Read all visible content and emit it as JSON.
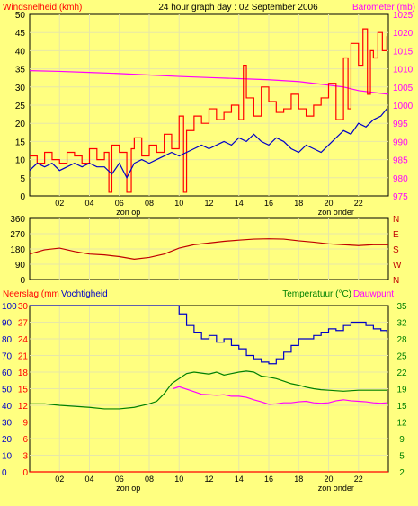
{
  "page": {
    "header_title": "24 hour graph day : 02 September 2006",
    "colors": {
      "background": "#ffff80",
      "plot": "#ffff80",
      "grid": "#e7e7a8",
      "wind_max": "#ff0000",
      "wind_avg": "#0000c8",
      "barometer": "#ff00ff",
      "direction": "#c00000",
      "rain": "#ff0000",
      "humidity": "#0000c8",
      "temperature": "#008000",
      "dewpoint": "#ff00ff"
    }
  },
  "chart_data": [
    {
      "type": "line",
      "left_title": "Windsnelheid (kmh)",
      "right_title": "Barometer (mb)",
      "x_ticks": [
        "02",
        "04",
        "06",
        "08",
        "10",
        "12",
        "14",
        "16",
        "18",
        "20",
        "22"
      ],
      "x_sub_labels": [
        {
          "text": "zon op",
          "at": 6.6
        },
        {
          "text": "zon onder",
          "at": 20.5
        }
      ],
      "xlim": [
        0,
        24
      ],
      "left_ylim": [
        0,
        50
      ],
      "left_ticks": [
        "0",
        "5",
        "10",
        "15",
        "20",
        "25",
        "30",
        "35",
        "40",
        "45",
        "50"
      ],
      "right_ylim": [
        975,
        1025
      ],
      "right_ticks": [
        "975",
        "980",
        "985",
        "990",
        "995",
        "1000",
        "1005",
        "1010",
        "1015",
        "1020",
        "1025"
      ],
      "series": [
        {
          "key": "wind_max",
          "axis": "left",
          "x": [
            0.0,
            0.5,
            1.0,
            1.5,
            2.0,
            2.5,
            3.0,
            3.5,
            4.0,
            4.5,
            5.0,
            5.3,
            5.5,
            6.0,
            6.5,
            6.8,
            7.0,
            7.5,
            8.0,
            8.5,
            9.0,
            9.5,
            10.0,
            10.3,
            10.5,
            11.0,
            11.5,
            12.0,
            12.5,
            13.0,
            13.5,
            14.0,
            14.3,
            14.5,
            15.0,
            15.5,
            16.0,
            16.5,
            17.0,
            17.5,
            18.0,
            18.5,
            19.0,
            19.5,
            20.0,
            20.5,
            21.0,
            21.3,
            21.5,
            22.0,
            22.3,
            22.6,
            22.8,
            23.0,
            23.3,
            23.6,
            23.9
          ],
          "y": [
            11,
            9,
            12,
            10,
            9,
            12,
            11,
            9,
            13,
            10,
            12,
            1,
            14,
            12,
            1,
            13,
            16,
            11,
            14,
            12,
            17,
            13,
            22,
            1,
            18,
            22,
            20,
            24,
            21,
            23,
            25,
            21,
            36,
            27,
            22,
            30,
            26,
            23,
            24,
            28,
            24,
            22,
            25,
            27,
            31,
            21,
            38,
            24,
            42,
            36,
            46,
            28,
            40,
            38,
            45,
            40,
            44
          ]
        },
        {
          "key": "wind_avg",
          "axis": "left",
          "x": [
            0.0,
            0.5,
            1.0,
            1.5,
            2.0,
            2.5,
            3.0,
            3.5,
            4.0,
            4.5,
            5.0,
            5.5,
            6.0,
            6.5,
            7.0,
            7.5,
            8.0,
            8.5,
            9.0,
            9.5,
            10.0,
            10.5,
            11.0,
            11.5,
            12.0,
            12.5,
            13.0,
            13.5,
            14.0,
            14.5,
            15.0,
            15.5,
            16.0,
            16.5,
            17.0,
            17.5,
            18.0,
            18.5,
            19.0,
            19.5,
            20.0,
            20.5,
            21.0,
            21.5,
            22.0,
            22.5,
            23.0,
            23.5,
            23.9
          ],
          "y": [
            7,
            9,
            8,
            9,
            7,
            8,
            9,
            8,
            9,
            8,
            8,
            6,
            9,
            5,
            9,
            10,
            9,
            10,
            11,
            12,
            11,
            12,
            13,
            14,
            13,
            14,
            15,
            14,
            16,
            15,
            17,
            15,
            14,
            16,
            15,
            13,
            12,
            14,
            13,
            12,
            14,
            16,
            18,
            17,
            20,
            19,
            21,
            22,
            24
          ]
        },
        {
          "key": "barometer",
          "axis": "right",
          "x": [
            0,
            2,
            4,
            6,
            8,
            10,
            12,
            14,
            16,
            18,
            20,
            21,
            22,
            23,
            24
          ],
          "y": [
            1009.5,
            1009.3,
            1009.0,
            1008.7,
            1008.3,
            1007.9,
            1007.6,
            1007.3,
            1007.0,
            1006.5,
            1005.5,
            1005.0,
            1004.0,
            1003.5,
            1003.0
          ]
        }
      ]
    },
    {
      "type": "line",
      "left_ticks": [
        "0",
        "90",
        "180",
        "270",
        "360"
      ],
      "left_ylim": [
        0,
        360
      ],
      "right_ticks": [
        "N",
        "W",
        "S",
        "E",
        "N"
      ],
      "xlim": [
        0,
        24
      ],
      "series": [
        {
          "key": "direction",
          "axis": "left",
          "x": [
            0,
            1,
            2,
            3,
            4,
            5,
            6,
            7,
            8,
            9,
            10,
            11,
            12,
            13,
            14,
            15,
            16,
            17,
            18,
            19,
            20,
            21,
            22,
            23,
            24
          ],
          "y": [
            150,
            175,
            185,
            165,
            150,
            145,
            135,
            120,
            130,
            150,
            185,
            205,
            215,
            225,
            232,
            238,
            240,
            238,
            228,
            220,
            210,
            205,
            200,
            205,
            205
          ]
        }
      ]
    },
    {
      "type": "line",
      "left_title_a": "Neerslag (mm",
      "left_title_b": "Vochtigheid",
      "right_title_a": "Temperatuur (°C)",
      "right_title_b": "Dauwpunt",
      "x_ticks": [
        "02",
        "04",
        "06",
        "08",
        "10",
        "12",
        "14",
        "16",
        "18",
        "20",
        "22"
      ],
      "x_sub_labels": [
        {
          "text": "zon op",
          "at": 6.6
        },
        {
          "text": "zon onder",
          "at": 20.5
        }
      ],
      "xlim": [
        0,
        24
      ],
      "rain_ticks": [
        "0",
        "3",
        "6",
        "9",
        "12",
        "15",
        "18",
        "21",
        "24",
        "27",
        "30"
      ],
      "rain_ylim": [
        0,
        30
      ],
      "humidity_ticks": [
        "0",
        "10",
        "20",
        "30",
        "40",
        "50",
        "60",
        "70",
        "80",
        "90",
        "100"
      ],
      "humidity_ylim": [
        0,
        100
      ],
      "right_ticks": [
        "2",
        "5",
        "9",
        "12",
        "15",
        "19",
        "22",
        "25",
        "28",
        "32",
        "35"
      ],
      "right_ylim": [
        2,
        35
      ],
      "series": [
        {
          "key": "humidity",
          "axis": "humidity",
          "x": [
            0,
            1,
            2,
            3,
            4,
            5,
            6,
            7,
            8,
            9,
            9.6,
            10,
            10.5,
            11,
            11.5,
            12,
            12.5,
            13,
            13.5,
            14,
            14.5,
            15,
            15.5,
            16,
            16.5,
            17,
            17.5,
            18,
            18.5,
            19,
            19.5,
            20,
            20.5,
            21,
            21.5,
            22,
            22.5,
            23,
            23.5,
            23.9
          ],
          "y": [
            100,
            100,
            100,
            100,
            100,
            100,
            100,
            100,
            100,
            100,
            100,
            95,
            88,
            84,
            80,
            82,
            78,
            80,
            76,
            74,
            70,
            68,
            66,
            65,
            68,
            72,
            76,
            80,
            80,
            82,
            84,
            86,
            85,
            88,
            90,
            90,
            88,
            86,
            85,
            84
          ]
        },
        {
          "key": "temperature",
          "axis": "right",
          "x": [
            0,
            1,
            2,
            3,
            4,
            5,
            6,
            7,
            8,
            8.5,
            9,
            9.5,
            10,
            10.5,
            11,
            11.5,
            12,
            12.5,
            13,
            13.5,
            14,
            14.5,
            15,
            15.5,
            16,
            16.5,
            17,
            17.5,
            18,
            18.5,
            19,
            19.5,
            20,
            21,
            22,
            23,
            23.9
          ],
          "y": [
            15.5,
            15.5,
            15.2,
            15.0,
            14.8,
            14.5,
            14.5,
            14.8,
            15.5,
            16.0,
            17.5,
            19.5,
            20.5,
            21.5,
            21.8,
            21.6,
            21.4,
            21.8,
            21.2,
            21.5,
            21.8,
            22.0,
            21.8,
            21.0,
            20.8,
            20.5,
            20.0,
            19.5,
            19.2,
            18.8,
            18.5,
            18.3,
            18.2,
            18.0,
            18.2,
            18.2,
            18.2
          ]
        },
        {
          "key": "dewpoint",
          "axis": "right",
          "x": [
            9.6,
            10,
            10.5,
            11,
            11.5,
            12,
            12.5,
            13,
            13.5,
            14,
            14.5,
            15,
            15.5,
            16,
            16.5,
            17,
            17.5,
            18,
            18.5,
            19,
            19.5,
            20,
            20.5,
            21,
            21.5,
            22,
            22.5,
            23,
            23.5,
            23.9
          ],
          "y": [
            18.5,
            18.9,
            18.4,
            17.9,
            17.4,
            17.3,
            17.2,
            17.3,
            17.0,
            17.0,
            16.8,
            16.3,
            15.9,
            15.4,
            15.5,
            15.7,
            15.7,
            15.9,
            16.0,
            15.7,
            15.6,
            15.7,
            16.1,
            16.3,
            16.1,
            16.0,
            15.9,
            15.7,
            15.6,
            15.7
          ]
        },
        {
          "key": "rain",
          "axis": "rain",
          "x": [
            0,
            24
          ],
          "y": [
            0,
            0
          ]
        }
      ]
    }
  ]
}
